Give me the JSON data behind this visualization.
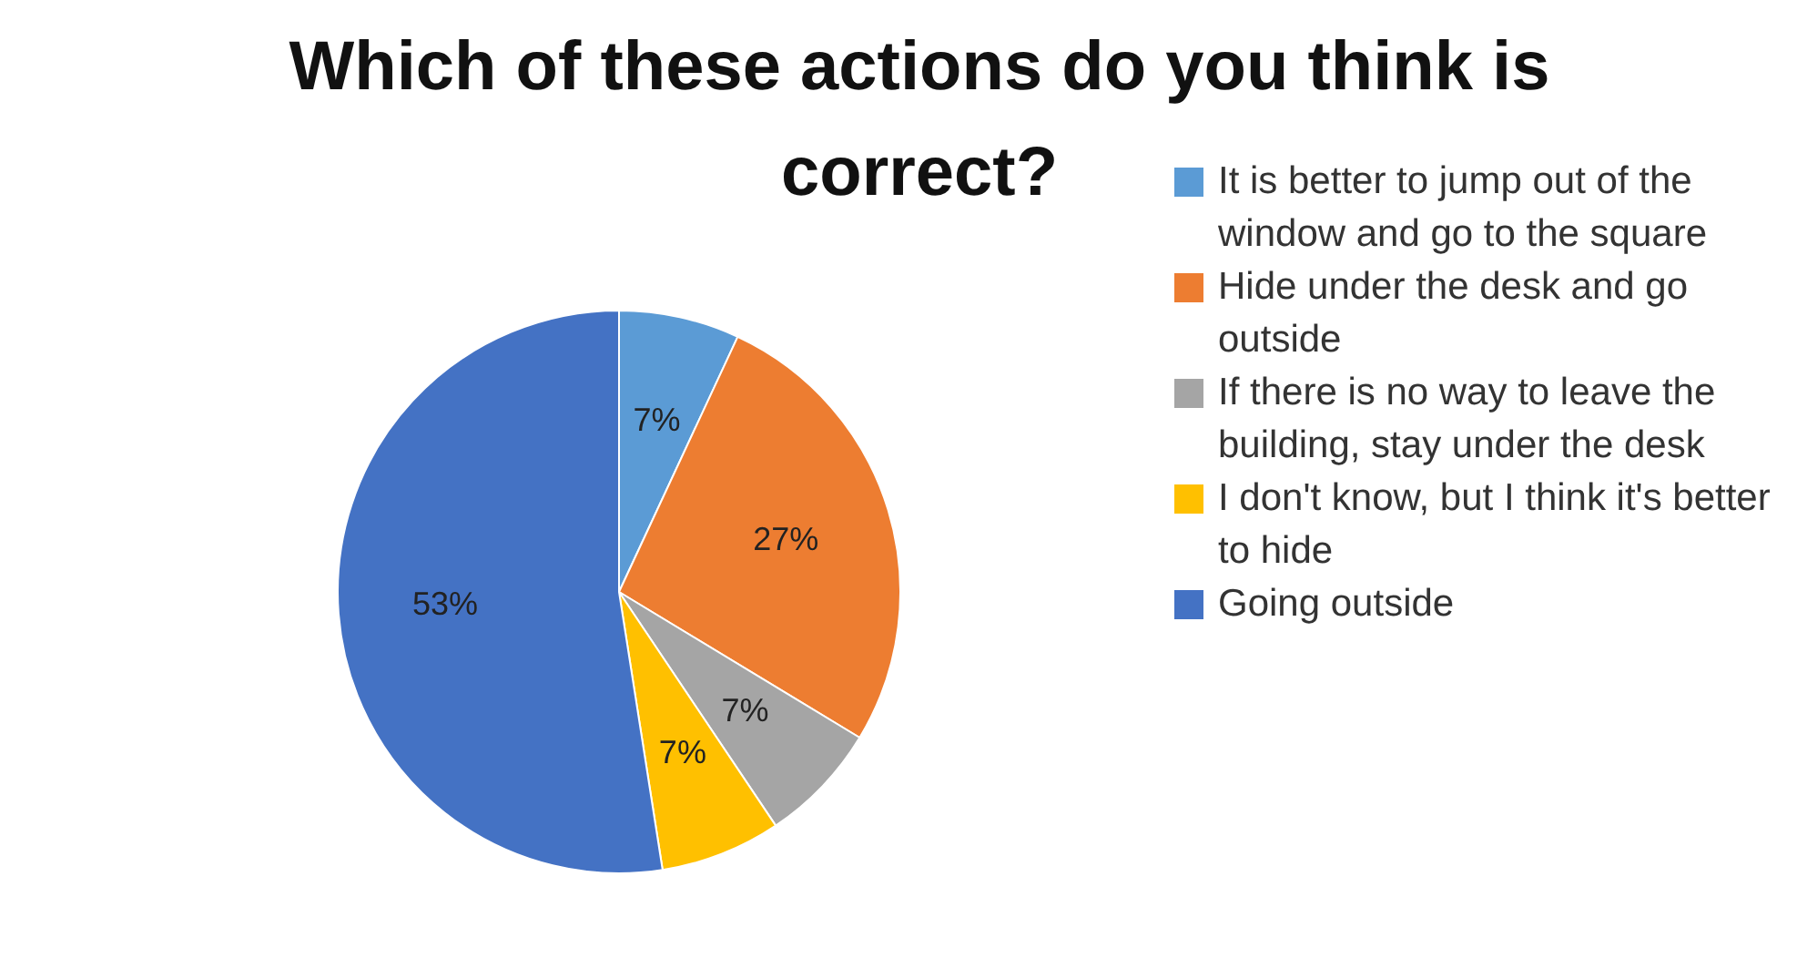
{
  "chart_data": {
    "type": "pie",
    "title": "Which of these actions do you think is correct?",
    "categories": [
      "It is better to jump out of the window and go to the square",
      "Hide under the desk and go outside",
      "If there is no way to leave the building, stay under the desk",
      "I don't know, but I think it's better to hide",
      "Going outside"
    ],
    "values": [
      7,
      27,
      7,
      7,
      53
    ],
    "colors": [
      "#5b9bd5",
      "#ed7d31",
      "#a5a5a5",
      "#ffc000",
      "#4472c4"
    ],
    "value_labels": [
      "7%",
      "27%",
      "7%",
      "7%",
      "53%"
    ],
    "legend": "right"
  }
}
